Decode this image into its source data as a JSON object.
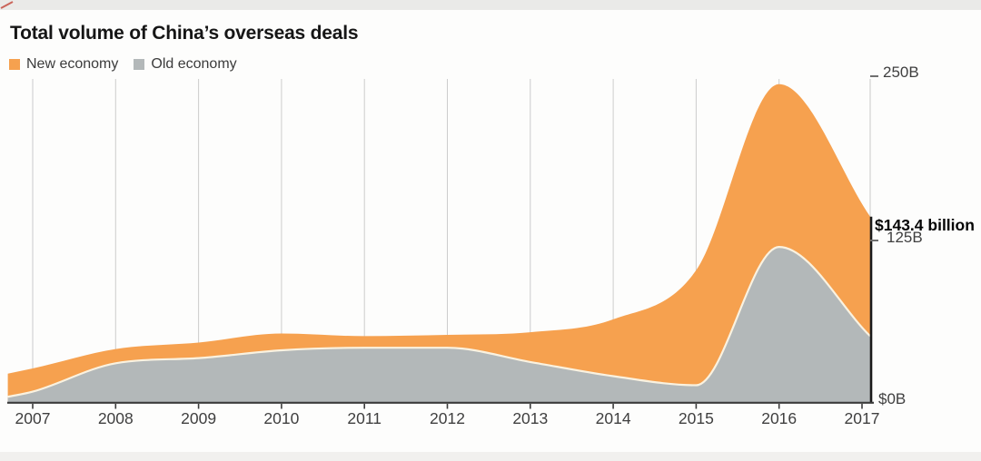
{
  "header": {
    "title": "Total volume of China’s overseas deals"
  },
  "legend": {
    "items": [
      {
        "label": "New economy",
        "color": "#F6A14F"
      },
      {
        "label": "Old economy",
        "color": "#B3B8B9"
      }
    ]
  },
  "annotation": {
    "label": "$143.4 billion",
    "value": 143.4
  },
  "y_axis": {
    "labels": [
      {
        "text": "250B",
        "value": 250
      },
      {
        "text": "125B",
        "value": 125
      },
      {
        "text": "$0B",
        "value": 0
      }
    ]
  },
  "colors": {
    "new_economy": "#F6A14F",
    "old_economy": "#B3B8B9",
    "area_boundary": "#FAF2E0",
    "gridline": "#cccccc",
    "axis": "#3b3b3b",
    "end_marker": "#1a1a1a",
    "corner_mark": "#c0392b"
  },
  "chart_data": {
    "type": "area",
    "stacked": true,
    "title": "Total volume of China’s overseas deals",
    "unit": "USD billions",
    "ylim": [
      0,
      250
    ],
    "grid": "vertical-year-gridlines",
    "legend_position": "top-left",
    "x_tick_labels": [
      "2007",
      "2008",
      "2009",
      "2010",
      "2011",
      "2012",
      "2013",
      "2014",
      "2015",
      "2016",
      "2017"
    ],
    "x_tick_years": [
      2007,
      2008,
      2009,
      2010,
      2011,
      2012,
      2013,
      2014,
      2015,
      2016,
      2017
    ],
    "x": [
      2006.7,
      2007,
      2008,
      2009,
      2010,
      2011,
      2012,
      2013,
      2014,
      2015,
      2016,
      2017.1
    ],
    "series": [
      {
        "name": "Old economy",
        "color": "#B3B8B9",
        "values": [
          4,
          8,
          30,
          34,
          40,
          42,
          42,
          31,
          20,
          13,
          120,
          51
        ]
      },
      {
        "name": "New economy",
        "color": "#F6A14F",
        "values": [
          18,
          18,
          11,
          12,
          13,
          9,
          10,
          23,
          44,
          89,
          126,
          92.4
        ]
      }
    ],
    "totals": [
      22,
      26,
      41,
      46,
      53,
      51,
      52,
      54,
      64,
      102,
      246,
      143.4
    ],
    "end_annotation": {
      "text": "$143.4 billion",
      "value": 143.4,
      "position": "series-end"
    }
  }
}
